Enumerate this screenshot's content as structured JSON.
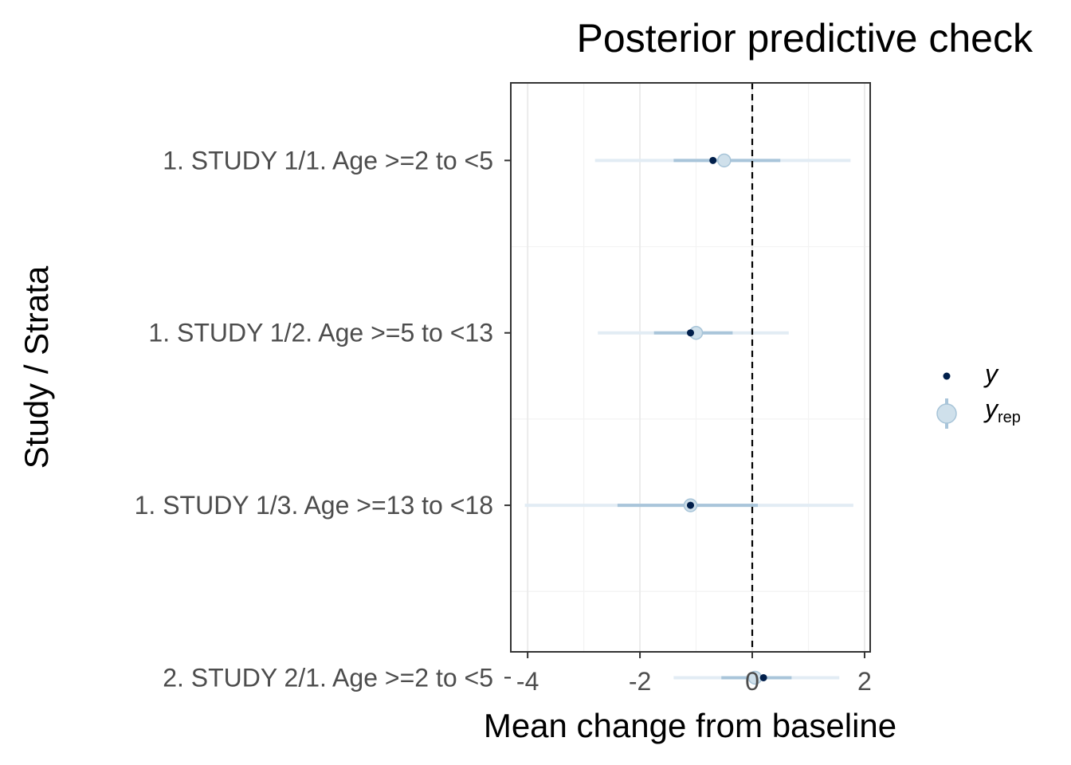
{
  "chart_data": {
    "type": "interval",
    "title": "Posterior predictive check",
    "xlabel": "Mean change from baseline",
    "ylabel": "Study / Strata",
    "xlim": [
      -4.3,
      2.1
    ],
    "xticks": [
      -4,
      -2,
      0,
      2
    ],
    "x_tick_labels": [
      "-4",
      "-2",
      "0",
      "2"
    ],
    "reference_line": {
      "x": 0,
      "style": "dashed"
    },
    "grid": true,
    "legend_position": "right",
    "legend": {
      "y": {
        "label": "y"
      },
      "yrep": {
        "label": "y",
        "subscript": "rep"
      }
    },
    "categories": [
      "1. STUDY 1/1. Age >=2 to <5",
      "1. STUDY 1/2. Age >=5 to <13",
      "1. STUDY 1/3. Age >=13 to <18",
      "2. STUDY 2/1. Age >=2 to <5"
    ],
    "series": [
      {
        "name": "y",
        "values": [
          -0.7,
          -1.1,
          -1.1,
          0.2
        ]
      },
      {
        "name": "yrep",
        "median": [
          -0.5,
          -1.0,
          -1.1,
          0.05
        ],
        "inner": [
          [
            -1.4,
            0.5
          ],
          [
            -1.75,
            -0.35
          ],
          [
            -2.4,
            0.1
          ],
          [
            -0.55,
            0.7
          ]
        ],
        "outer": [
          [
            -2.8,
            1.75
          ],
          [
            -2.75,
            0.65
          ],
          [
            -4.05,
            1.8
          ],
          [
            -1.4,
            1.55
          ]
        ]
      }
    ],
    "colors": {
      "y_point": "#011f4b",
      "yrep_point": "#cfe0eb",
      "yrep_point_stroke": "#a7c4d8",
      "inner_interval": "#a9c5da",
      "outer_interval": "#e2ecf4",
      "grid_major": "#ebebeb",
      "grid_minor": "#f3f3f3",
      "axis_text": "#4d4d4d",
      "panel_border": "#333333"
    }
  }
}
